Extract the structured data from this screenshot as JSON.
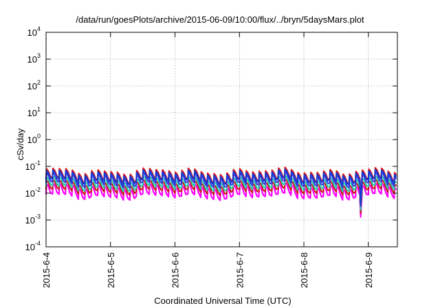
{
  "chart_data": {
    "type": "line",
    "title": "/data/run/goesPlots/archive/2015-06-09/10:00/flux/../bryn/5daysMars.plot",
    "xlabel": "Coordinated Universal Time (UTC)",
    "ylabel": "cSv/day",
    "x_ticks": [
      "2015-6-4",
      "2015-6-5",
      "2015-6-6",
      "2015-6-7",
      "2015-6-8",
      "2015-6-9"
    ],
    "xlim_days": [
      0,
      5.45
    ],
    "y_scale": "log",
    "ylim": [
      0.0001,
      10000
    ],
    "y_ticks": [
      {
        "base": "10",
        "exp": "-4"
      },
      {
        "base": "10",
        "exp": "-3"
      },
      {
        "base": "10",
        "exp": "-2"
      },
      {
        "base": "10",
        "exp": "-1"
      },
      {
        "base": "10",
        "exp": "0"
      },
      {
        "base": "10",
        "exp": "1"
      },
      {
        "base": "10",
        "exp": "2"
      },
      {
        "base": "10",
        "exp": "3"
      },
      {
        "base": "10",
        "exp": "4"
      }
    ],
    "grid": true,
    "legend": "none",
    "cycle_days": 0.1,
    "series": [
      {
        "color": "#ff00ff",
        "peak": 0.019,
        "trough": 0.0075
      },
      {
        "color": "#c81e1e",
        "peak": 0.026,
        "trough": 0.0115
      },
      {
        "color": "#2ad0b0",
        "peak": 0.035,
        "trough": 0.0155
      },
      {
        "color": "#3a3ae0",
        "peak": 0.048,
        "trough": 0.021
      },
      {
        "color": "#e01414",
        "peak": 0.068,
        "trough": 0.03
      },
      {
        "color": "#1a3ad0",
        "peak": 0.058,
        "trough": 0.027
      }
    ],
    "dip": {
      "day": 4.88,
      "value": 0.0013
    }
  }
}
